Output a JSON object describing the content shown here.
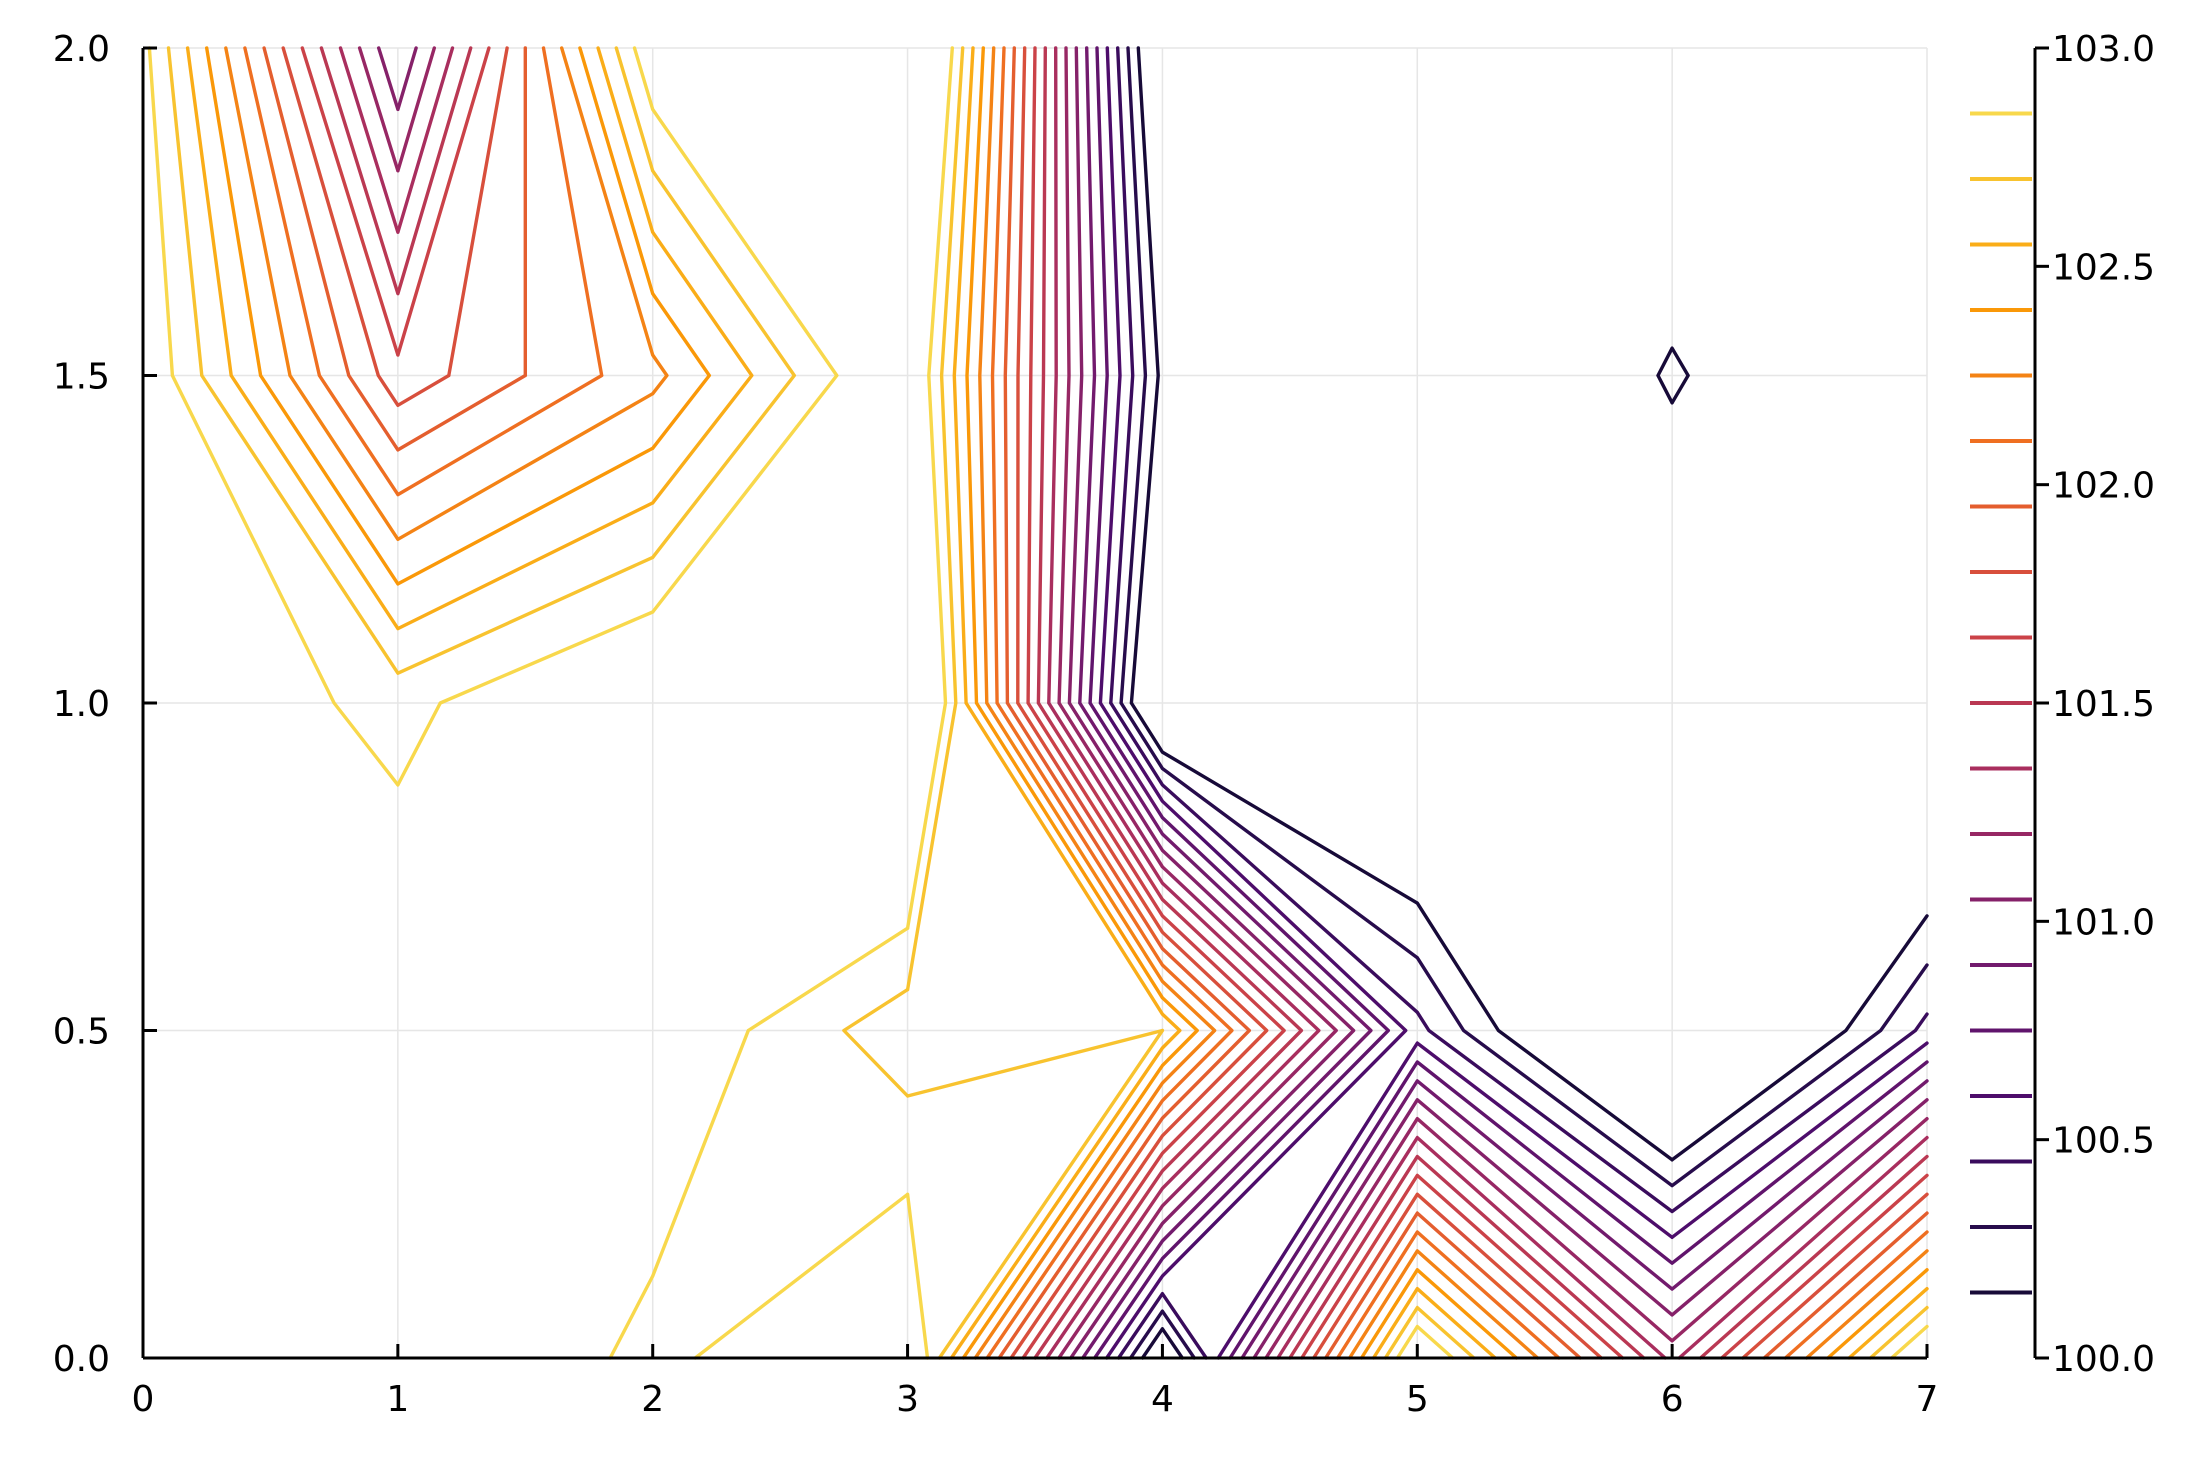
{
  "chart_data": {
    "type": "contour",
    "x_ticks": [
      "0",
      "1",
      "2",
      "3",
      "4",
      "5",
      "6",
      "7"
    ],
    "y_ticks": [
      "0.0",
      "0.5",
      "1.0",
      "1.5",
      "2.0"
    ],
    "colorbar_ticks": [
      "100.0",
      "100.5",
      "101.0",
      "101.5",
      "102.0",
      "102.5",
      "103.0"
    ],
    "xlim": [
      0,
      7
    ],
    "ylim": [
      0,
      2
    ],
    "clim": [
      100,
      103
    ],
    "colormap": "inferno",
    "grid": true,
    "levels": [
      100.15,
      100.3,
      100.45,
      100.6,
      100.75,
      100.9,
      101.05,
      101.2,
      101.35,
      101.5,
      101.65,
      101.8,
      101.95,
      102.1,
      102.25,
      102.4,
      102.55,
      102.7,
      102.85
    ],
    "x": [
      0,
      1,
      2,
      3,
      4,
      5,
      6,
      7
    ],
    "y": [
      0,
      0.5,
      1.0,
      1.5,
      2.0
    ],
    "z": [
      [
        103.2,
        103.1,
        103.0,
        103.0,
        102.9
      ],
      [
        103.1,
        103.0,
        102.8,
        101.7,
        100.9
      ],
      [
        102.8,
        103.0,
        103.1,
        102.2,
        103.0
      ],
      [
        103.1,
        102.6,
        103.4,
        103.1,
        103.5
      ],
      [
        99.9,
        102.7,
        99.7,
        100.1,
        99.8
      ],
      [
        103.1,
        100.5,
        99.6,
        99.3,
        99.2
      ],
      [
        101.3,
        99.4,
        99.6,
        100.2,
        99.6
      ],
      [
        103.1,
        100.5,
        99.5,
        99.4,
        99.3
      ]
    ]
  }
}
